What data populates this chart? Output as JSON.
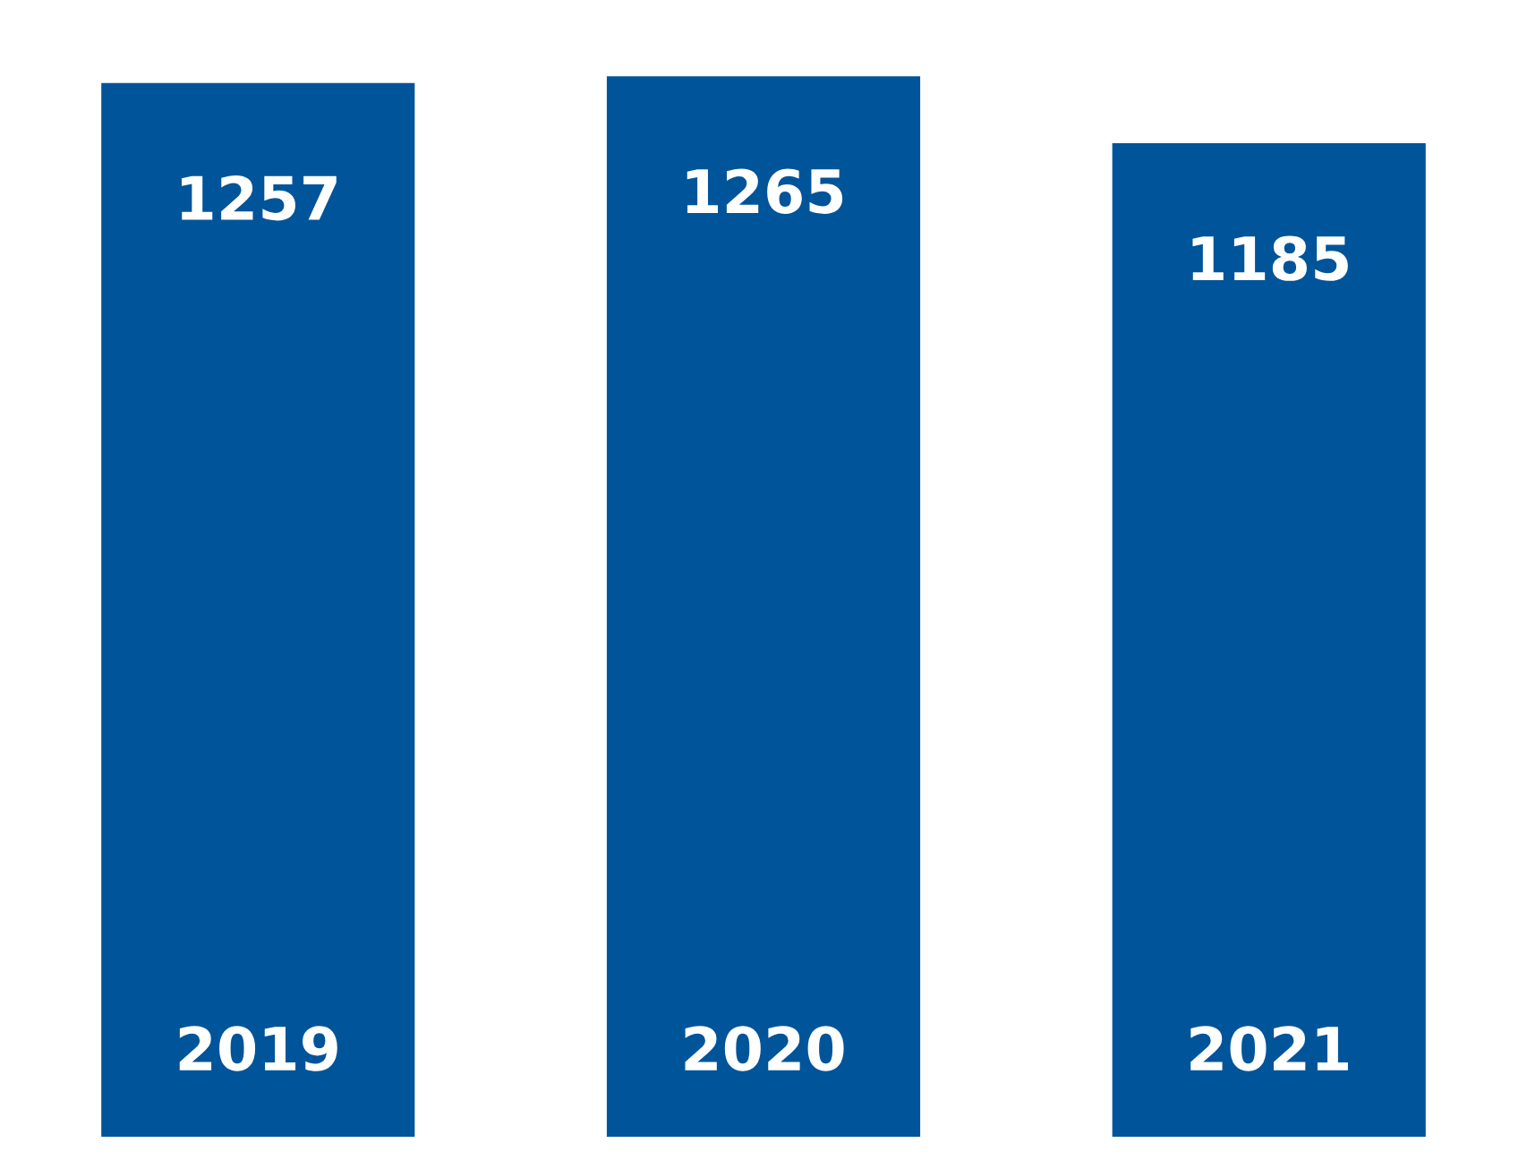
{
  "chart_data": {
    "type": "bar",
    "categories": [
      "2019",
      "2020",
      "2021"
    ],
    "values": [
      1257,
      1265,
      1185
    ],
    "color": "#00549a",
    "data_labels": true,
    "grid": false,
    "legend": false
  }
}
